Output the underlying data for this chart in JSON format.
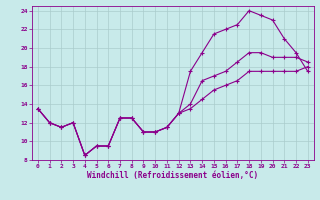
{
  "title": "",
  "xlabel": "Windchill (Refroidissement éolien,°C)",
  "ylabel": "",
  "bg_color": "#c8eaea",
  "line_color": "#8b008b",
  "grid_color": "#aacccc",
  "xlim": [
    -0.5,
    23.5
  ],
  "ylim": [
    8,
    24.5
  ],
  "xticks": [
    0,
    1,
    2,
    3,
    4,
    5,
    6,
    7,
    8,
    9,
    10,
    11,
    12,
    13,
    14,
    15,
    16,
    17,
    18,
    19,
    20,
    21,
    22,
    23
  ],
  "yticks": [
    8,
    10,
    12,
    14,
    16,
    18,
    20,
    22,
    24
  ],
  "line1_x": [
    0,
    1,
    2,
    3,
    4,
    5,
    6,
    7,
    8,
    9,
    10,
    11,
    12,
    13,
    14,
    15,
    16,
    17,
    18,
    19,
    20,
    21,
    22,
    23
  ],
  "line1_y": [
    13.5,
    12.0,
    11.5,
    12.0,
    8.5,
    9.5,
    9.5,
    12.5,
    12.5,
    11.0,
    11.0,
    11.5,
    13.0,
    17.5,
    19.5,
    21.5,
    22.0,
    22.5,
    24.0,
    23.5,
    23.0,
    21.0,
    19.5,
    17.5
  ],
  "line2_x": [
    0,
    1,
    2,
    3,
    4,
    5,
    6,
    7,
    8,
    9,
    10,
    11,
    12,
    13,
    14,
    15,
    16,
    17,
    18,
    19,
    20,
    21,
    22,
    23
  ],
  "line2_y": [
    13.5,
    12.0,
    11.5,
    12.0,
    8.5,
    9.5,
    9.5,
    12.5,
    12.5,
    11.0,
    11.0,
    11.5,
    13.0,
    14.0,
    16.5,
    17.0,
    17.5,
    18.5,
    19.5,
    19.5,
    19.0,
    19.0,
    19.0,
    18.5
  ],
  "line3_x": [
    0,
    1,
    2,
    3,
    4,
    5,
    6,
    7,
    8,
    9,
    10,
    11,
    12,
    13,
    14,
    15,
    16,
    17,
    18,
    19,
    20,
    21,
    22,
    23
  ],
  "line3_y": [
    13.5,
    12.0,
    11.5,
    12.0,
    8.5,
    9.5,
    9.5,
    12.5,
    12.5,
    11.0,
    11.0,
    11.5,
    13.0,
    13.5,
    14.5,
    15.5,
    16.0,
    16.5,
    17.5,
    17.5,
    17.5,
    17.5,
    17.5,
    18.0
  ]
}
